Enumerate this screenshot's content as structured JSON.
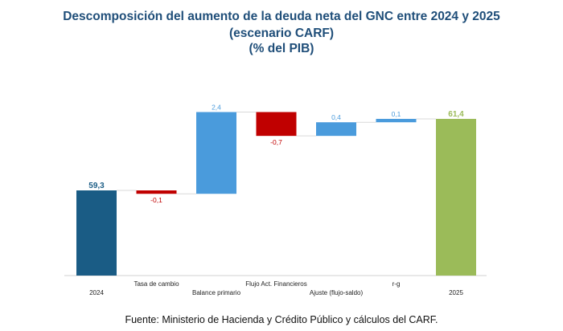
{
  "titles": [
    "Descomposición del aumento de la deuda neta del GNC entre 2024 y 2025",
    "(escenario CARF)",
    "(% del PIB)"
  ],
  "source": "Fuente: Ministerio de Hacienda y Crédito Público y cálculos del CARF.",
  "colors": {
    "total_2024": "#1a5c85",
    "increase": "#4a9bdc",
    "decrease": "#c00000",
    "total_2025": "#9bbb59"
  },
  "chart_data": {
    "type": "bar",
    "subtype": "waterfall",
    "categories": [
      "2024",
      "Tasa de cambio",
      "Balance primario",
      "Flujo Act. Financieros",
      "Ajuste (flujo-saldo)",
      "r-g",
      "2025"
    ],
    "label_rows": [
      "bottom",
      "top",
      "bottom",
      "top",
      "bottom",
      "top",
      "bottom"
    ],
    "values": [
      59.3,
      -0.1,
      2.4,
      -0.7,
      0.4,
      0.1,
      61.4
    ],
    "value_labels": [
      "59,3",
      "-0,1",
      "2,4",
      "-0,7",
      "0,4",
      "0,1",
      "61,4"
    ],
    "kinds": [
      "total",
      "decrease",
      "increase",
      "decrease",
      "increase",
      "increase",
      "total"
    ],
    "title": "Descomposición del aumento de la deuda neta del GNC entre 2024 y 2025",
    "xlabel": "",
    "ylabel": "",
    "grid": false,
    "legend": "none"
  }
}
